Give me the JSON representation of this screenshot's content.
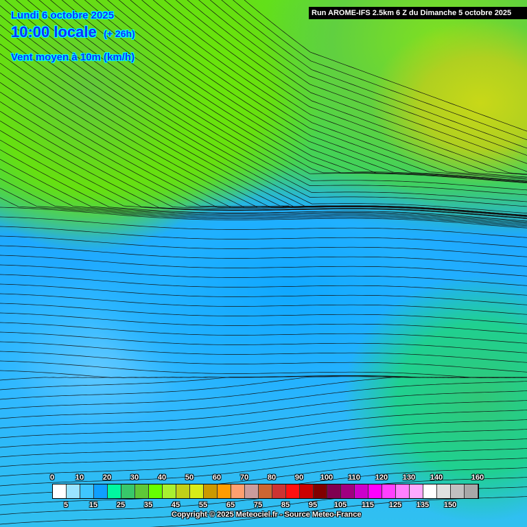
{
  "header": {
    "date": "Lundi 6 octobre 2025",
    "time": "10:00 locale",
    "offset": "(+ 26h)",
    "parameter": "Vent moyen à 10m (km/h)"
  },
  "run_label": "Run AROME-IFS 2.5km 6 Z du Dimanche 5 octobre 2025",
  "legend": {
    "top_labels": [
      "0",
      "10",
      "20",
      "30",
      "40",
      "50",
      "60",
      "70",
      "80",
      "90",
      "100",
      "110",
      "120",
      "130",
      "140",
      "160"
    ],
    "bottom_labels": [
      "5",
      "15",
      "25",
      "35",
      "45",
      "55",
      "65",
      "75",
      "85",
      "95",
      "105",
      "115",
      "125",
      "135",
      "150"
    ],
    "colors": [
      "#ffffff",
      "#9ae4ff",
      "#3fc6ff",
      "#0f9fff",
      "#00f8a0",
      "#38c86a",
      "#5ec838",
      "#66ff00",
      "#a8f030",
      "#c0d018",
      "#d8ec18",
      "#cc9900",
      "#ff9c00",
      "#ffa070",
      "#cc9c9c",
      "#cc6633",
      "#cc3333",
      "#ff1010",
      "#cc0000",
      "#800000",
      "#800050",
      "#a00080",
      "#cc00cc",
      "#ff00ff",
      "#ff40ff",
      "#ff80ff",
      "#ffaaff",
      "#ffffff",
      "#e0e0e0",
      "#c0c0c0",
      "#a8a8a8"
    ]
  },
  "copyright": "Copyright © 2025 Meteociel.fr - Source Meteo-France"
}
